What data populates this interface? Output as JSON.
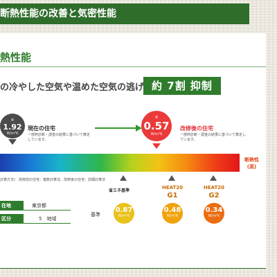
{
  "header": {
    "title": "断熱性能の改善と気密性能"
  },
  "section": {
    "title": "熱性能"
  },
  "lead": {
    "text": "の冷やした空気や温めた空気の逃げる量を"
  },
  "badge": {
    "text": "約 7割 抑制"
  },
  "current": {
    "value": "1.92",
    "unit": "W/m²K",
    "mark": "※",
    "title": "現在の住宅",
    "note": "一部熱診断・調査の結果に基づいて算定しています。"
  },
  "after": {
    "value": "0.57",
    "unit": "W/m²K",
    "mark": "※",
    "title": "改修後の住宅",
    "note": "一部熱診断・調査の結果に基づいて算定しています。"
  },
  "bar": {
    "right_label_1": "断熱性",
    "right_label_2": "(高)",
    "note": "計算方法)　改修前の住宅：複数計算法、改修後の住宅：詳細計算法"
  },
  "standards": {
    "label": "基準",
    "items": [
      {
        "title": "省エネ基準",
        "value": "0.87",
        "unit": "W/m²K",
        "color": "#e9c21a"
      },
      {
        "title_1": "HEAT20",
        "title_2": "G1",
        "value": "0.48",
        "unit": "W/m²K",
        "color": "#f0a30c"
      },
      {
        "title_1": "HEAT20",
        "title_2": "G2",
        "value": "0.34",
        "unit": "W/m²K",
        "color": "#ec6c10"
      }
    ]
  },
  "info": [
    {
      "key": "在地",
      "value": "東京都"
    },
    {
      "key": "区分",
      "value": "5　地域"
    }
  ],
  "colors": {
    "accent": "#2f7d2c",
    "header": "#2f6d2b",
    "after": "#ea3a3a",
    "current": "#4b4b4b"
  }
}
